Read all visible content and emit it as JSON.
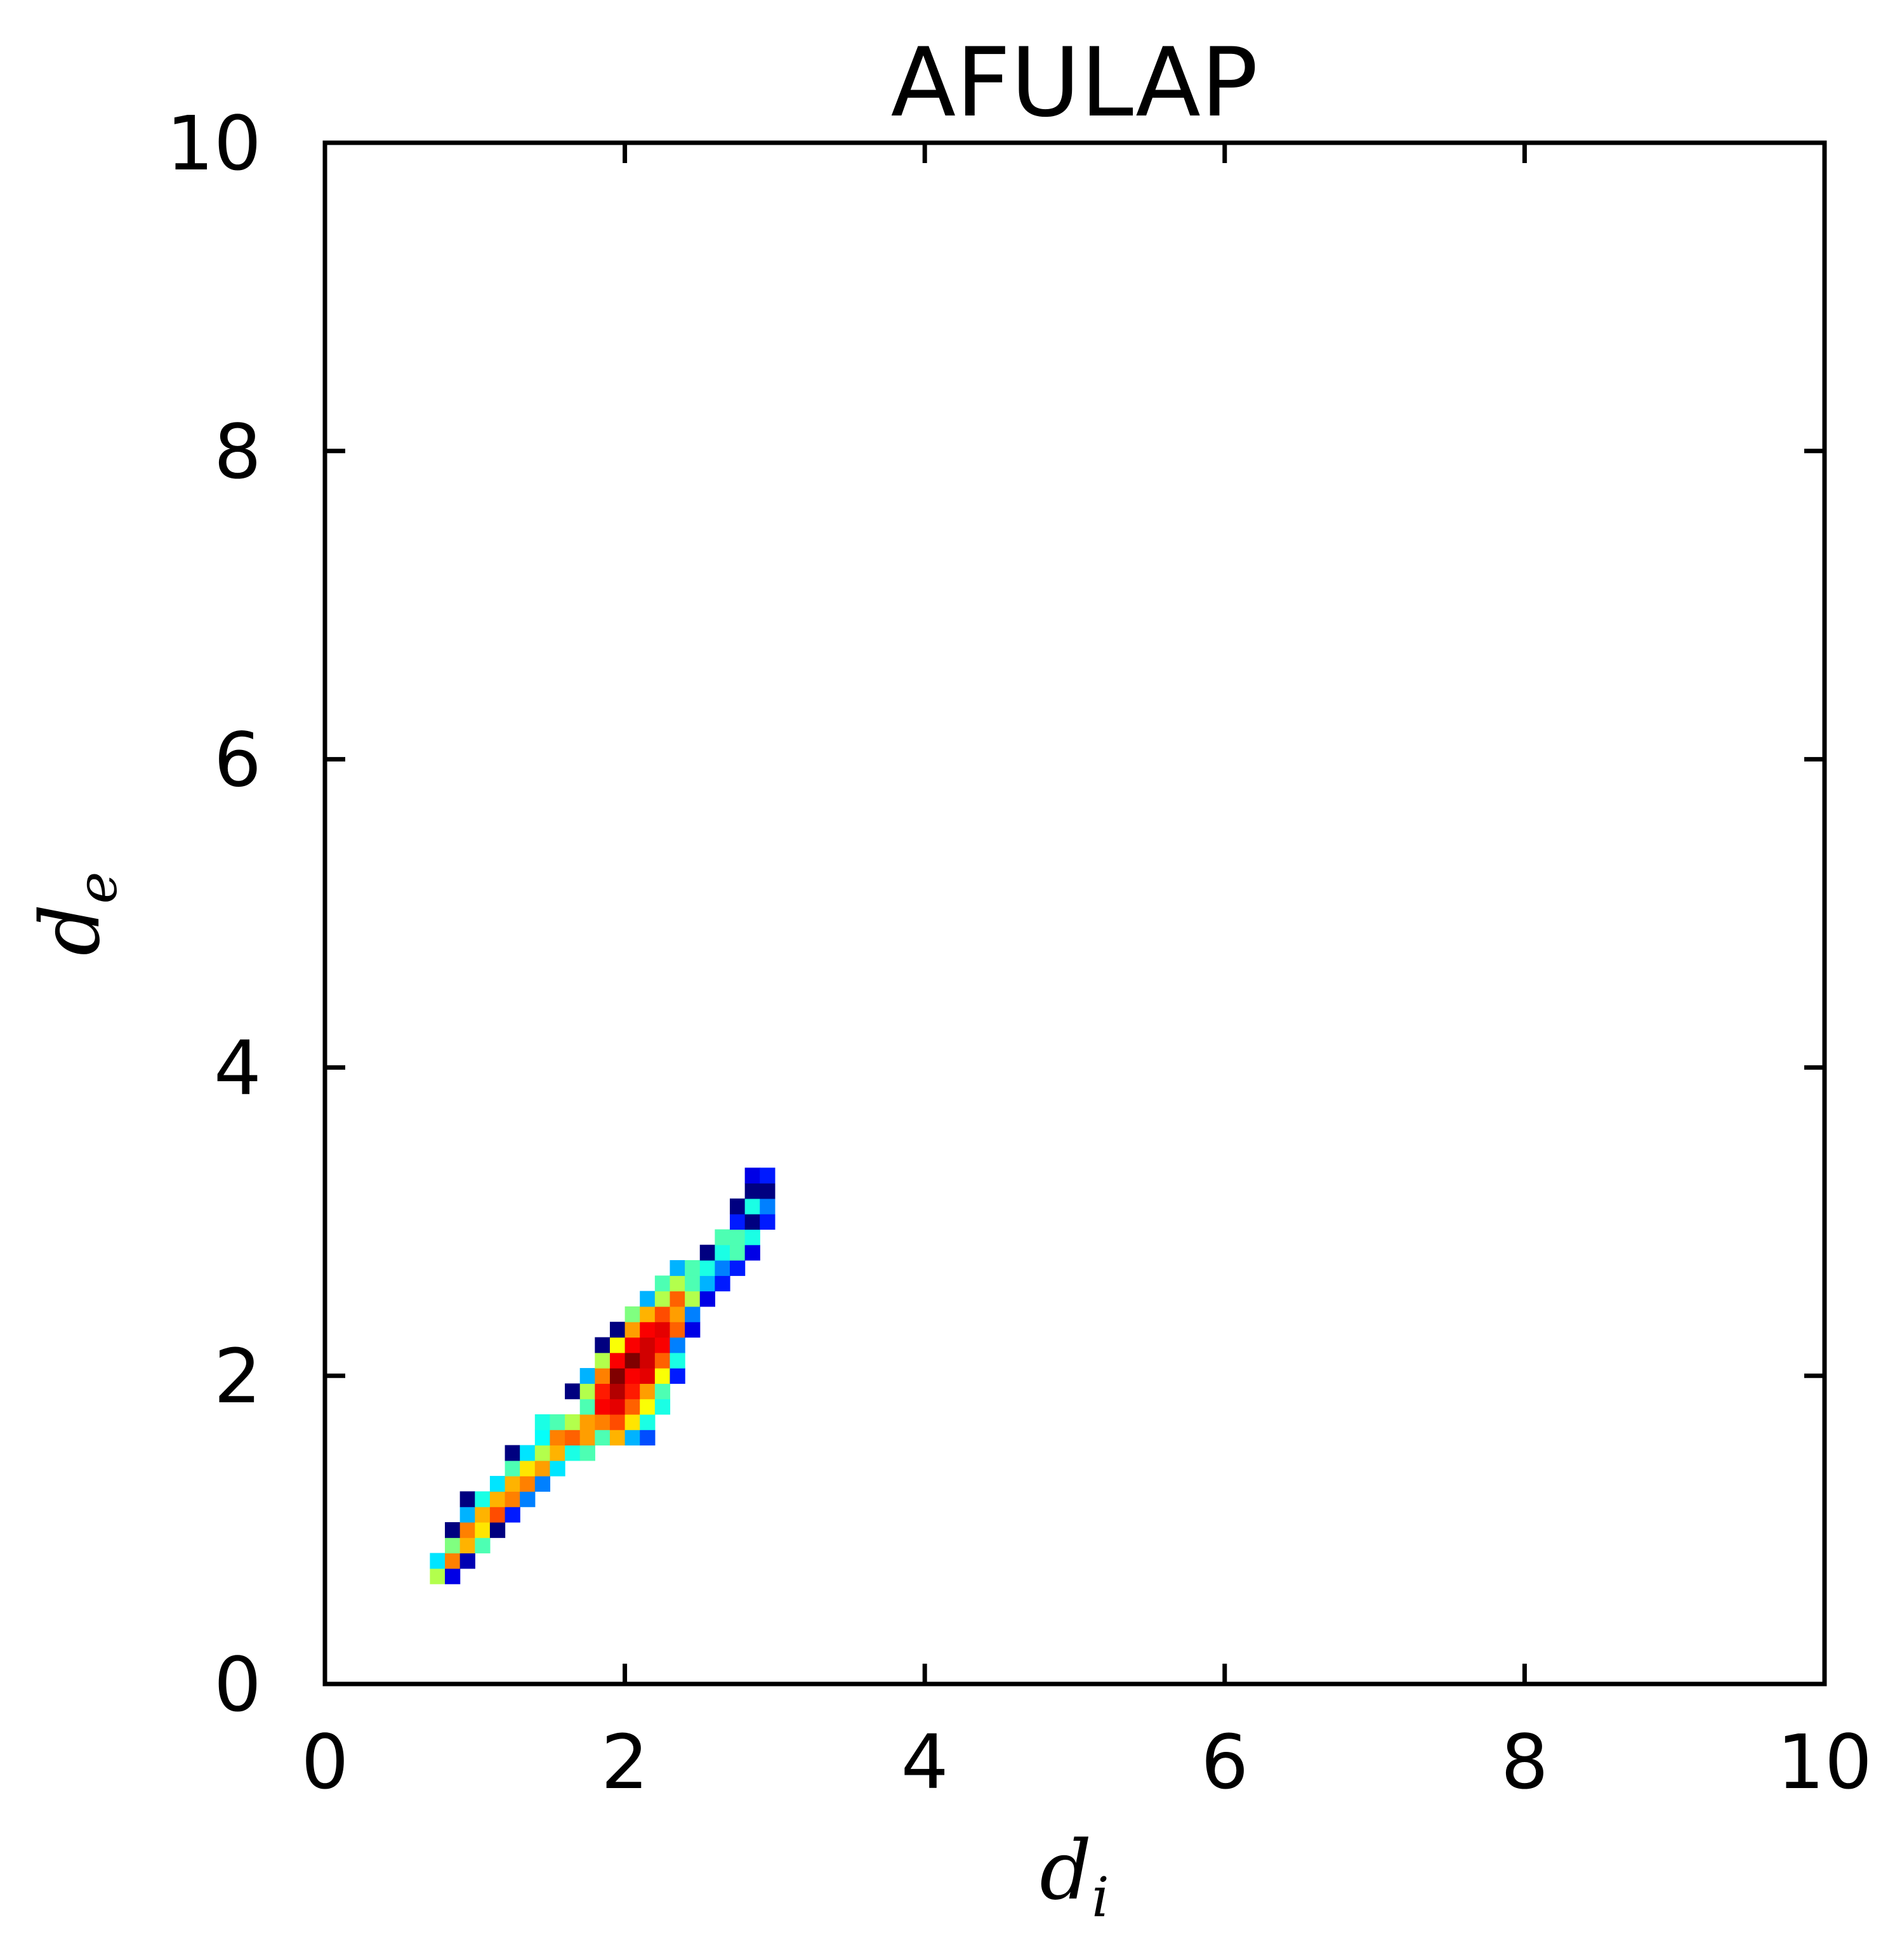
{
  "chart_data": {
    "type": "heatmap",
    "title": "AFULAP",
    "xlabel": {
      "base": "d",
      "sub": "i"
    },
    "ylabel": {
      "base": "d",
      "sub": "e"
    },
    "xlim": [
      0,
      10
    ],
    "ylim": [
      0,
      10
    ],
    "xticks": [
      "0",
      "2",
      "4",
      "6",
      "8",
      "10"
    ],
    "yticks": [
      "0",
      "2",
      "4",
      "6",
      "8",
      "10"
    ],
    "grid": false,
    "colormap": "jet",
    "bin_size": 0.1,
    "note_bins": "each cell = [d_i, d_e, relative density 0-1]",
    "cells": [
      [
        0.75,
        0.7,
        0.55
      ],
      [
        0.85,
        0.7,
        0.1
      ],
      [
        0.75,
        0.8,
        0.35
      ],
      [
        0.85,
        0.8,
        0.75
      ],
      [
        0.95,
        0.8,
        0.05
      ],
      [
        0.85,
        0.9,
        0.5
      ],
      [
        0.95,
        0.9,
        0.7
      ],
      [
        1.05,
        0.9,
        0.45
      ],
      [
        0.85,
        1.0,
        0.0
      ],
      [
        0.95,
        1.0,
        0.75
      ],
      [
        1.05,
        1.0,
        0.65
      ],
      [
        1.15,
        1.0,
        0.0
      ],
      [
        0.95,
        1.1,
        0.3
      ],
      [
        1.05,
        1.1,
        0.7
      ],
      [
        1.15,
        1.1,
        0.8
      ],
      [
        1.25,
        1.1,
        0.15
      ],
      [
        0.95,
        1.2,
        0.0
      ],
      [
        1.05,
        1.2,
        0.4
      ],
      [
        1.15,
        1.2,
        0.7
      ],
      [
        1.25,
        1.2,
        0.75
      ],
      [
        1.35,
        1.2,
        0.25
      ],
      [
        1.15,
        1.3,
        0.35
      ],
      [
        1.25,
        1.3,
        0.7
      ],
      [
        1.35,
        1.3,
        0.75
      ],
      [
        1.45,
        1.3,
        0.25
      ],
      [
        1.25,
        1.4,
        0.45
      ],
      [
        1.35,
        1.4,
        0.65
      ],
      [
        1.45,
        1.4,
        0.72
      ],
      [
        1.55,
        1.4,
        0.35
      ],
      [
        1.25,
        1.5,
        0.0
      ],
      [
        1.35,
        1.5,
        0.35
      ],
      [
        1.45,
        1.5,
        0.55
      ],
      [
        1.55,
        1.5,
        0.7
      ],
      [
        1.65,
        1.5,
        0.4
      ],
      [
        1.75,
        1.5,
        0.45
      ],
      [
        1.45,
        1.6,
        0.38
      ],
      [
        1.55,
        1.6,
        0.75
      ],
      [
        1.65,
        1.6,
        0.78
      ],
      [
        1.75,
        1.6,
        0.72
      ],
      [
        1.85,
        1.6,
        0.45
      ],
      [
        1.95,
        1.6,
        0.7
      ],
      [
        2.05,
        1.6,
        0.3
      ],
      [
        2.15,
        1.6,
        0.2
      ],
      [
        1.45,
        1.7,
        0.4
      ],
      [
        1.55,
        1.7,
        0.45
      ],
      [
        1.65,
        1.7,
        0.55
      ],
      [
        1.75,
        1.7,
        0.72
      ],
      [
        1.85,
        1.7,
        0.75
      ],
      [
        1.95,
        1.7,
        0.8
      ],
      [
        2.05,
        1.7,
        0.65
      ],
      [
        2.15,
        1.7,
        0.4
      ],
      [
        1.75,
        1.8,
        0.45
      ],
      [
        1.85,
        1.8,
        0.88
      ],
      [
        1.95,
        1.8,
        0.9
      ],
      [
        2.05,
        1.8,
        0.78
      ],
      [
        2.15,
        1.8,
        0.62
      ],
      [
        2.25,
        1.8,
        0.4
      ],
      [
        1.65,
        1.9,
        0.0
      ],
      [
        1.75,
        1.9,
        0.55
      ],
      [
        1.85,
        1.9,
        0.85
      ],
      [
        1.95,
        1.9,
        0.95
      ],
      [
        2.05,
        1.9,
        0.85
      ],
      [
        2.15,
        1.9,
        0.72
      ],
      [
        2.25,
        1.9,
        0.45
      ],
      [
        1.75,
        2.0,
        0.3
      ],
      [
        1.85,
        2.0,
        0.75
      ],
      [
        1.95,
        2.0,
        1.0
      ],
      [
        2.05,
        2.0,
        0.88
      ],
      [
        2.15,
        2.0,
        0.9
      ],
      [
        2.25,
        2.0,
        0.62
      ],
      [
        2.35,
        2.0,
        0.15
      ],
      [
        1.85,
        2.1,
        0.55
      ],
      [
        1.95,
        2.1,
        0.88
      ],
      [
        2.05,
        2.1,
        1.0
      ],
      [
        2.15,
        2.1,
        0.92
      ],
      [
        2.25,
        2.1,
        0.78
      ],
      [
        2.35,
        2.1,
        0.4
      ],
      [
        1.85,
        2.2,
        0.0
      ],
      [
        1.95,
        2.2,
        0.62
      ],
      [
        2.05,
        2.2,
        0.88
      ],
      [
        2.15,
        2.2,
        0.92
      ],
      [
        2.25,
        2.2,
        0.88
      ],
      [
        2.35,
        2.2,
        0.25
      ],
      [
        1.95,
        2.3,
        0.0
      ],
      [
        2.05,
        2.3,
        0.72
      ],
      [
        2.15,
        2.3,
        0.88
      ],
      [
        2.25,
        2.3,
        0.9
      ],
      [
        2.35,
        2.3,
        0.78
      ],
      [
        2.45,
        2.3,
        0.1
      ],
      [
        2.05,
        2.4,
        0.5
      ],
      [
        2.15,
        2.4,
        0.7
      ],
      [
        2.25,
        2.4,
        0.8
      ],
      [
        2.35,
        2.4,
        0.72
      ],
      [
        2.45,
        2.4,
        0.25
      ],
      [
        2.15,
        2.5,
        0.3
      ],
      [
        2.25,
        2.5,
        0.55
      ],
      [
        2.35,
        2.5,
        0.78
      ],
      [
        2.45,
        2.5,
        0.55
      ],
      [
        2.55,
        2.5,
        0.1
      ],
      [
        2.25,
        2.6,
        0.45
      ],
      [
        2.35,
        2.6,
        0.55
      ],
      [
        2.45,
        2.6,
        0.45
      ],
      [
        2.55,
        2.6,
        0.3
      ],
      [
        2.65,
        2.6,
        0.15
      ],
      [
        2.35,
        2.7,
        0.3
      ],
      [
        2.45,
        2.7,
        0.45
      ],
      [
        2.55,
        2.7,
        0.4
      ],
      [
        2.65,
        2.7,
        0.25
      ],
      [
        2.75,
        2.7,
        0.15
      ],
      [
        2.55,
        2.8,
        0.0
      ],
      [
        2.65,
        2.8,
        0.4
      ],
      [
        2.75,
        2.8,
        0.45
      ],
      [
        2.85,
        2.8,
        0.1
      ],
      [
        2.65,
        2.9,
        0.45
      ],
      [
        2.75,
        2.9,
        0.45
      ],
      [
        2.85,
        2.9,
        0.4
      ],
      [
        2.75,
        3.0,
        0.15
      ],
      [
        2.85,
        3.0,
        0.0
      ],
      [
        2.95,
        3.0,
        0.15
      ],
      [
        2.75,
        3.1,
        0.0
      ],
      [
        2.85,
        3.1,
        0.4
      ],
      [
        2.95,
        3.1,
        0.25
      ],
      [
        2.85,
        3.2,
        0.0
      ],
      [
        2.95,
        3.2,
        0.0
      ],
      [
        2.85,
        3.3,
        0.1
      ],
      [
        2.95,
        3.3,
        0.15
      ]
    ]
  }
}
